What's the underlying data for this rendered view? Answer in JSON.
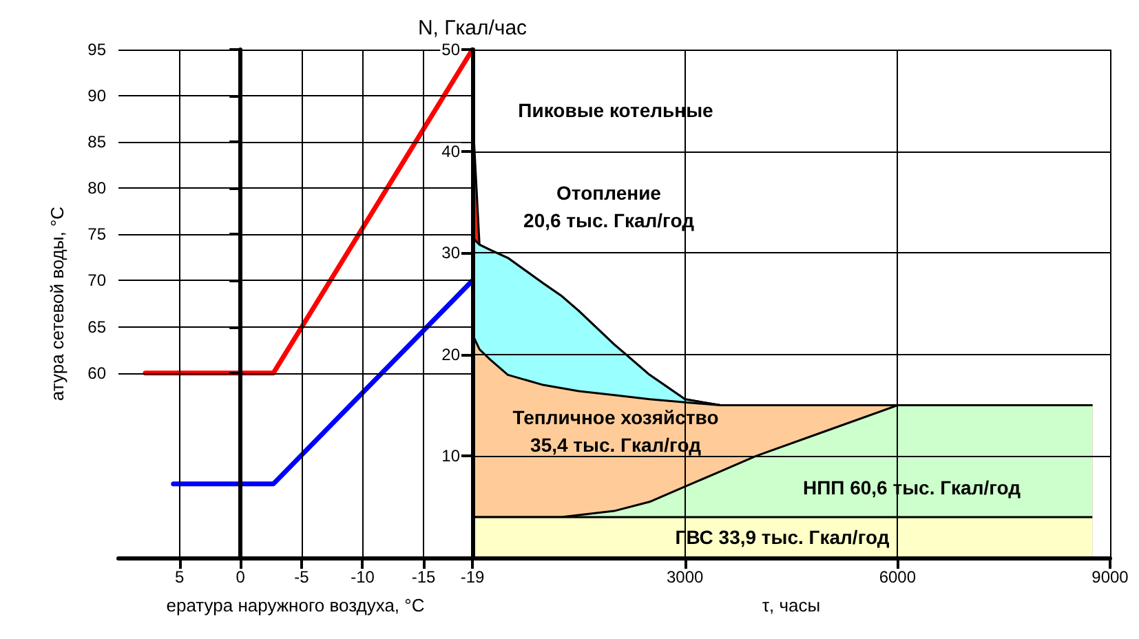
{
  "chart_data": [
    {
      "type": "line",
      "xlabel": "ература наружного воздуха, °С",
      "ylabel": "атура сетевой воды, °С",
      "xlim": [
        10,
        -19
      ],
      "xticks": [
        5,
        0,
        -5,
        -10,
        -15,
        -19
      ],
      "ylim": [
        40,
        95
      ],
      "yticks": [
        60,
        65,
        70,
        75,
        80,
        85,
        90,
        95
      ],
      "grid": true,
      "marker": "none",
      "line_style": "solid",
      "series": [
        {
          "color": "#ff0000",
          "x": [
            7.8,
            -2.7,
            -19
          ],
          "values": [
            60,
            60,
            95
          ]
        },
        {
          "color": "#0000ff",
          "x": [
            5.5,
            -2.7,
            -19
          ],
          "values": [
            48,
            48,
            70
          ]
        }
      ]
    },
    {
      "type": "area",
      "stacked": true,
      "ylabel": "N, Гкал/час",
      "xlabel": "τ, часы",
      "xlim": [
        0,
        9000
      ],
      "xticks": [
        {
          "value": 0,
          "label": null
        },
        3000,
        6000,
        9000
      ],
      "ylim": [
        0,
        50
      ],
      "yticks": [
        10,
        20,
        30,
        40,
        50
      ],
      "grid": true,
      "x": [
        0,
        100,
        250,
        500,
        1000,
        1250,
        1500,
        2000,
        2500,
        3000,
        3500,
        4000,
        5000,
        6000,
        7000,
        8000,
        8750
      ],
      "series": [
        {
          "color": "#ffffc8",
          "values": [
            4,
            4,
            4,
            4,
            4,
            4,
            4,
            4,
            4,
            4,
            4,
            4,
            4,
            4,
            4,
            4,
            4
          ]
        },
        {
          "color": "#ccffcc",
          "values": [
            0,
            0,
            0,
            0,
            0,
            0,
            0.2,
            0.6,
            1.5,
            3,
            4.5,
            6,
            8.5,
            11,
            11,
            11,
            11
          ]
        },
        {
          "color": "#ffcc99",
          "values": [
            18,
            16.5,
            15.5,
            14,
            13,
            12.7,
            12.2,
            11.4,
            10.1,
            8.3,
            6.5,
            5,
            2.5,
            0,
            0,
            0,
            0
          ]
        },
        {
          "color": "#99ffff",
          "values": [
            9.5,
            10.3,
            10.8,
            11.5,
            10,
            9.1,
            7.9,
            5,
            2.4,
            0.3,
            0,
            0,
            0,
            0,
            0,
            0,
            0
          ]
        },
        {
          "color": "#ff2000",
          "values": [
            12.5,
            0,
            0,
            0,
            0,
            0,
            0,
            0,
            0,
            0,
            0,
            0,
            0,
            0,
            0,
            0,
            0
          ]
        }
      ],
      "annotations": [
        "Пиковые котельные",
        "Отопление\n20,6 тыс. Гкал/год",
        "Тепличное хозяйство\n35,4 тыс. Гкал/год",
        "НПП 60,6 тыс. Гкал/год",
        "ГВС 33,9 тыс. Гкал/год"
      ]
    }
  ]
}
